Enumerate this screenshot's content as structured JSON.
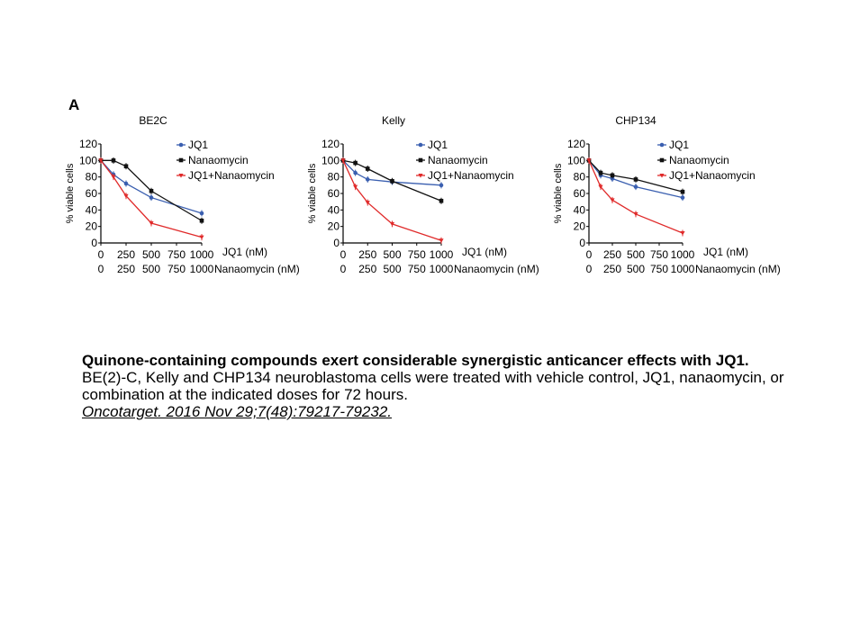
{
  "figure": {
    "panel_letter": "A",
    "colors": {
      "JQ1": "#3a5fb0",
      "Nanaomycin": "#111111",
      "JQ1+Nanaomycin": "#e02a2a"
    }
  },
  "chart_data": [
    {
      "type": "line",
      "title": "BE2C",
      "ylabel": "% viable cells",
      "ylim": [
        0,
        120
      ],
      "yticks": [
        "0",
        "20",
        "40",
        "60",
        "80",
        "100",
        "120"
      ],
      "x": [
        0,
        125,
        250,
        500,
        1000
      ],
      "xticks_positions": [
        0,
        250,
        500,
        750,
        1000
      ],
      "xtick_labels_row1": [
        "0",
        "250",
        "500",
        "750",
        "1000"
      ],
      "xtick_labels_row2": [
        "0",
        "250",
        "500",
        "750",
        "1000"
      ],
      "xlabel_row1": "JQ1 (nM)",
      "xlabel_row2": "Nanaomycin (nM)",
      "series": [
        {
          "name": "JQ1",
          "values": [
            100,
            83,
            72,
            55,
            36
          ]
        },
        {
          "name": "Nanaomycin",
          "values": [
            100,
            100,
            93,
            63,
            27
          ]
        },
        {
          "name": "JQ1+Nanaomycin",
          "values": [
            100,
            80,
            57,
            24,
            7
          ]
        }
      ]
    },
    {
      "type": "line",
      "title": "Kelly",
      "ylabel": "% viable cells",
      "ylim": [
        0,
        120
      ],
      "yticks": [
        "0",
        "20",
        "40",
        "60",
        "80",
        "100",
        "120"
      ],
      "x": [
        0,
        125,
        250,
        500,
        1000
      ],
      "xticks_positions": [
        0,
        250,
        500,
        750,
        1000
      ],
      "xtick_labels_row1": [
        "0",
        "250",
        "500",
        "750",
        "1000"
      ],
      "xtick_labels_row2": [
        "0",
        "250",
        "500",
        "750",
        "1000"
      ],
      "xlabel_row1": "JQ1 (nM)",
      "xlabel_row2": "Nanaomycin (nM)",
      "series": [
        {
          "name": "JQ1",
          "values": [
            100,
            85,
            77,
            74,
            70
          ]
        },
        {
          "name": "Nanaomycin",
          "values": [
            100,
            97,
            90,
            75,
            51
          ]
        },
        {
          "name": "JQ1+Nanaomycin",
          "values": [
            100,
            68,
            49,
            23,
            3
          ]
        }
      ]
    },
    {
      "type": "line",
      "title": "CHP134",
      "ylabel": "% viable cells",
      "ylim": [
        0,
        120
      ],
      "yticks": [
        "0",
        "20",
        "40",
        "60",
        "80",
        "100",
        "120"
      ],
      "x": [
        0,
        125,
        250,
        500,
        1000
      ],
      "xticks_positions": [
        0,
        250,
        500,
        750,
        1000
      ],
      "xtick_labels_row1": [
        "0",
        "250",
        "500",
        "750",
        "1000"
      ],
      "xtick_labels_row2": [
        "0",
        "250",
        "500",
        "750",
        "1000"
      ],
      "xlabel_row1": "JQ1 (nM)",
      "xlabel_row2": "Nanaomycin (nM)",
      "series": [
        {
          "name": "JQ1",
          "values": [
            100,
            82,
            78,
            68,
            55
          ]
        },
        {
          "name": "Nanaomycin",
          "values": [
            100,
            85,
            82,
            77,
            62
          ]
        },
        {
          "name": "JQ1+Nanaomycin",
          "values": [
            100,
            68,
            52,
            35,
            12
          ]
        }
      ]
    }
  ],
  "caption": {
    "title": "Quinone-containing compounds exert considerable synergistic anticancer effects with JQ1.",
    "body": "BE(2)-C, Kelly and CHP134 neuroblastoma cells were treated with vehicle control, JQ1, nanaomycin, or combination at the indicated doses for 72 hours.",
    "citation": "Oncotarget. 2016 Nov 29;7(48):79217-79232."
  }
}
